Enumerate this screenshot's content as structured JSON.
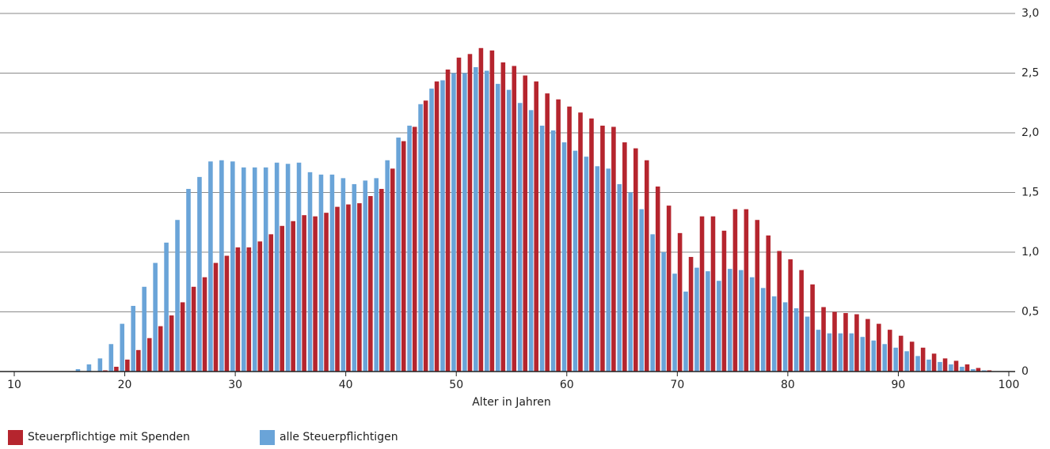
{
  "chart_data": {
    "type": "bar",
    "xlabel": "Alter in Jahren",
    "x": [
      16,
      17,
      18,
      19,
      20,
      21,
      22,
      23,
      24,
      25,
      26,
      27,
      28,
      29,
      30,
      31,
      32,
      33,
      34,
      35,
      36,
      37,
      38,
      39,
      40,
      41,
      42,
      43,
      44,
      45,
      46,
      47,
      48,
      49,
      50,
      51,
      52,
      53,
      54,
      55,
      56,
      57,
      58,
      59,
      60,
      61,
      62,
      63,
      64,
      65,
      66,
      67,
      68,
      69,
      70,
      71,
      72,
      73,
      74,
      75,
      76,
      77,
      78,
      79,
      80,
      81,
      82,
      83,
      84,
      85,
      86,
      87,
      88,
      89,
      90,
      91,
      92,
      93,
      94,
      95,
      96,
      97,
      98
    ],
    "series": [
      {
        "name": "Steuerpflichtige mit Spenden",
        "color": "#b5252e",
        "values": [
          0,
          0,
          0.01,
          0.04,
          0.1,
          0.18,
          0.28,
          0.38,
          0.47,
          0.58,
          0.71,
          0.79,
          0.91,
          0.97,
          1.04,
          1.04,
          1.09,
          1.15,
          1.22,
          1.26,
          1.31,
          1.3,
          1.33,
          1.38,
          1.4,
          1.41,
          1.47,
          1.53,
          1.7,
          1.93,
          2.05,
          2.27,
          2.43,
          2.53,
          2.63,
          2.66,
          2.71,
          2.69,
          2.59,
          2.56,
          2.48,
          2.43,
          2.33,
          2.28,
          2.22,
          2.17,
          2.12,
          2.06,
          2.05,
          1.92,
          1.87,
          1.77,
          1.55,
          1.39,
          1.16,
          0.96,
          1.3,
          1.3,
          1.18,
          1.36,
          1.36,
          1.27,
          1.14,
          1.01,
          0.94,
          0.85,
          0.73,
          0.54,
          0.5,
          0.49,
          0.48,
          0.44,
          0.4,
          0.35,
          0.3,
          0.25,
          0.2,
          0.15,
          0.11,
          0.09,
          0.06,
          0.03,
          0.01
        ]
      },
      {
        "name": "alle Steuerpflichtigen",
        "color": "#6aa4d8",
        "values": [
          0.02,
          0.06,
          0.11,
          0.23,
          0.4,
          0.55,
          0.71,
          0.91,
          1.08,
          1.27,
          1.53,
          1.63,
          1.76,
          1.77,
          1.76,
          1.71,
          1.71,
          1.71,
          1.75,
          1.74,
          1.75,
          1.67,
          1.65,
          1.65,
          1.62,
          1.57,
          1.6,
          1.62,
          1.77,
          1.96,
          2.06,
          2.24,
          2.37,
          2.44,
          2.5,
          2.5,
          2.55,
          2.52,
          2.41,
          2.36,
          2.25,
          2.19,
          2.06,
          2.02,
          1.92,
          1.85,
          1.8,
          1.72,
          1.7,
          1.57,
          1.5,
          1.36,
          1.15,
          1.0,
          0.82,
          0.67,
          0.87,
          0.84,
          0.76,
          0.86,
          0.85,
          0.79,
          0.7,
          0.63,
          0.58,
          0.53,
          0.46,
          0.35,
          0.32,
          0.32,
          0.32,
          0.29,
          0.26,
          0.23,
          0.2,
          0.17,
          0.13,
          0.1,
          0.08,
          0.06,
          0.04,
          0.02,
          0.01
        ]
      }
    ],
    "xlim": [
      10,
      100
    ],
    "xticks": [
      10,
      20,
      30,
      40,
      50,
      60,
      70,
      80,
      90,
      100
    ],
    "ylim": [
      0,
      3
    ],
    "yticks": [
      0,
      {
        "value": 0.5,
        "label": "0,5"
      },
      {
        "value": 1,
        "label": "1,0"
      },
      {
        "value": 1.5,
        "label": "1,5"
      },
      {
        "value": 2,
        "label": "2,0"
      },
      {
        "value": 2.5,
        "label": "2,5"
      },
      {
        "value": 3,
        "label": "3,0"
      }
    ],
    "grid": true
  }
}
